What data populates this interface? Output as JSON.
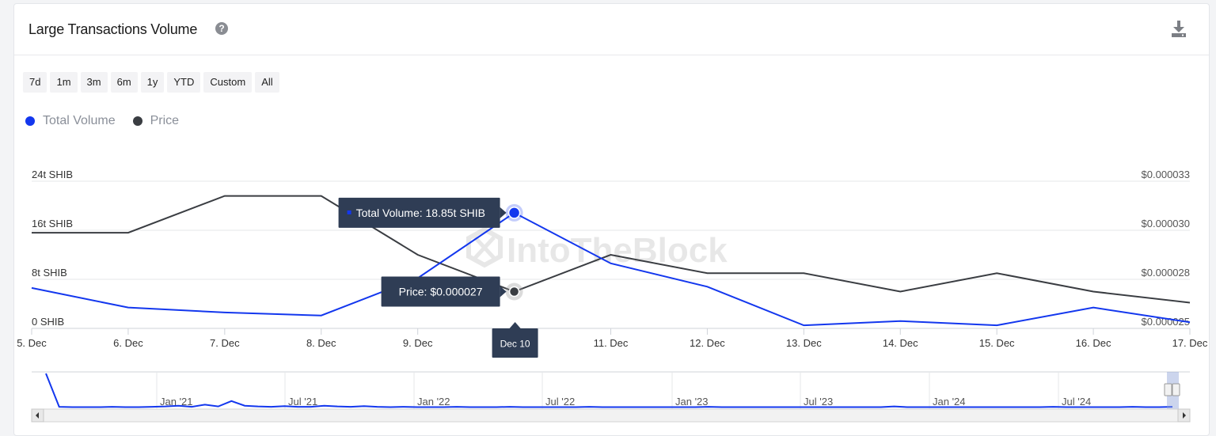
{
  "header": {
    "title": "Large Transactions Volume",
    "help_icon": "question-circle-icon",
    "download_icon": "download-icon"
  },
  "range_buttons": [
    "7d",
    "1m",
    "3m",
    "6m",
    "1y",
    "YTD",
    "Custom",
    "All"
  ],
  "colors": {
    "volume": "#1337ee",
    "price": "#3a3d42",
    "grid": "#e6e7ea",
    "tooltip_bg": "#2f3d55",
    "navigator_line": "#1337ee"
  },
  "watermark": "IntoTheBlock",
  "chart_data": {
    "type": "line",
    "x": [
      "5. Dec",
      "6. Dec",
      "7. Dec",
      "8. Dec",
      "9. Dec",
      "Dec 10",
      "11. Dec",
      "12. Dec",
      "13. Dec",
      "14. Dec",
      "15. Dec",
      "16. Dec",
      "17. Dec"
    ],
    "x_tick_labels": [
      "5. Dec",
      "6. Dec",
      "7. Dec",
      "8. Dec",
      "9. Dec",
      "11. Dec",
      "12. Dec",
      "13. Dec",
      "14. Dec",
      "15. Dec",
      "16. Dec",
      "17. Dec"
    ],
    "series": [
      {
        "name": "Total Volume",
        "axis": "left",
        "unit": "t SHIB",
        "values": [
          6.6,
          3.4,
          2.6,
          2.1,
          8.2,
          18.85,
          10.6,
          6.8,
          0.5,
          1.2,
          0.5,
          3.4,
          1.0
        ]
      },
      {
        "name": "Price",
        "axis": "right",
        "unit": "$",
        "values": [
          3.02e-05,
          3.02e-05,
          3.22e-05,
          3.22e-05,
          2.9e-05,
          2.7e-05,
          2.9e-05,
          2.8e-05,
          2.8e-05,
          2.7e-05,
          2.8e-05,
          2.7e-05,
          2.64e-05
        ]
      }
    ],
    "left_axis": {
      "min": 0,
      "max": 24,
      "ticks": [
        0,
        8,
        16,
        24
      ],
      "tick_labels": [
        "0 SHIB",
        "8t SHIB",
        "16t SHIB",
        "24t SHIB"
      ]
    },
    "right_axis": {
      "min": 2.5e-05,
      "max": 3.3e-05,
      "tick_labels": [
        "$0.000025",
        "$0.000028",
        "$0.000030",
        "$0.000033"
      ]
    },
    "grid": true,
    "legend_position": "top-left",
    "tooltips": {
      "volume": "Total Volume: 18.85t SHIB",
      "price": "Price: $0.000027",
      "x": "Dec 10"
    },
    "navigator": {
      "labels": [
        "Jan '21",
        "Jul '21",
        "Jan '22",
        "Jul '22",
        "Jan '23",
        "Jul '23",
        "Jan '24",
        "Jul '24"
      ],
      "values": [
        95,
        2,
        1,
        1,
        1,
        2,
        1,
        1,
        2,
        3,
        5,
        2,
        8,
        3,
        18,
        5,
        3,
        2,
        4,
        2,
        2,
        5,
        3,
        2,
        4,
        2,
        1,
        2,
        1,
        1,
        1,
        2,
        1,
        1,
        1,
        2,
        1,
        1,
        1,
        1,
        1,
        2,
        1,
        1,
        1,
        1,
        1,
        1,
        1,
        1,
        2,
        1,
        1,
        1,
        1,
        1,
        1,
        1,
        1,
        1,
        1,
        1,
        1,
        1,
        3,
        1,
        1,
        1,
        1,
        1,
        1,
        1,
        1,
        1,
        1,
        1,
        2,
        1,
        1,
        1,
        1,
        1,
        2,
        1,
        1,
        2
      ]
    }
  }
}
